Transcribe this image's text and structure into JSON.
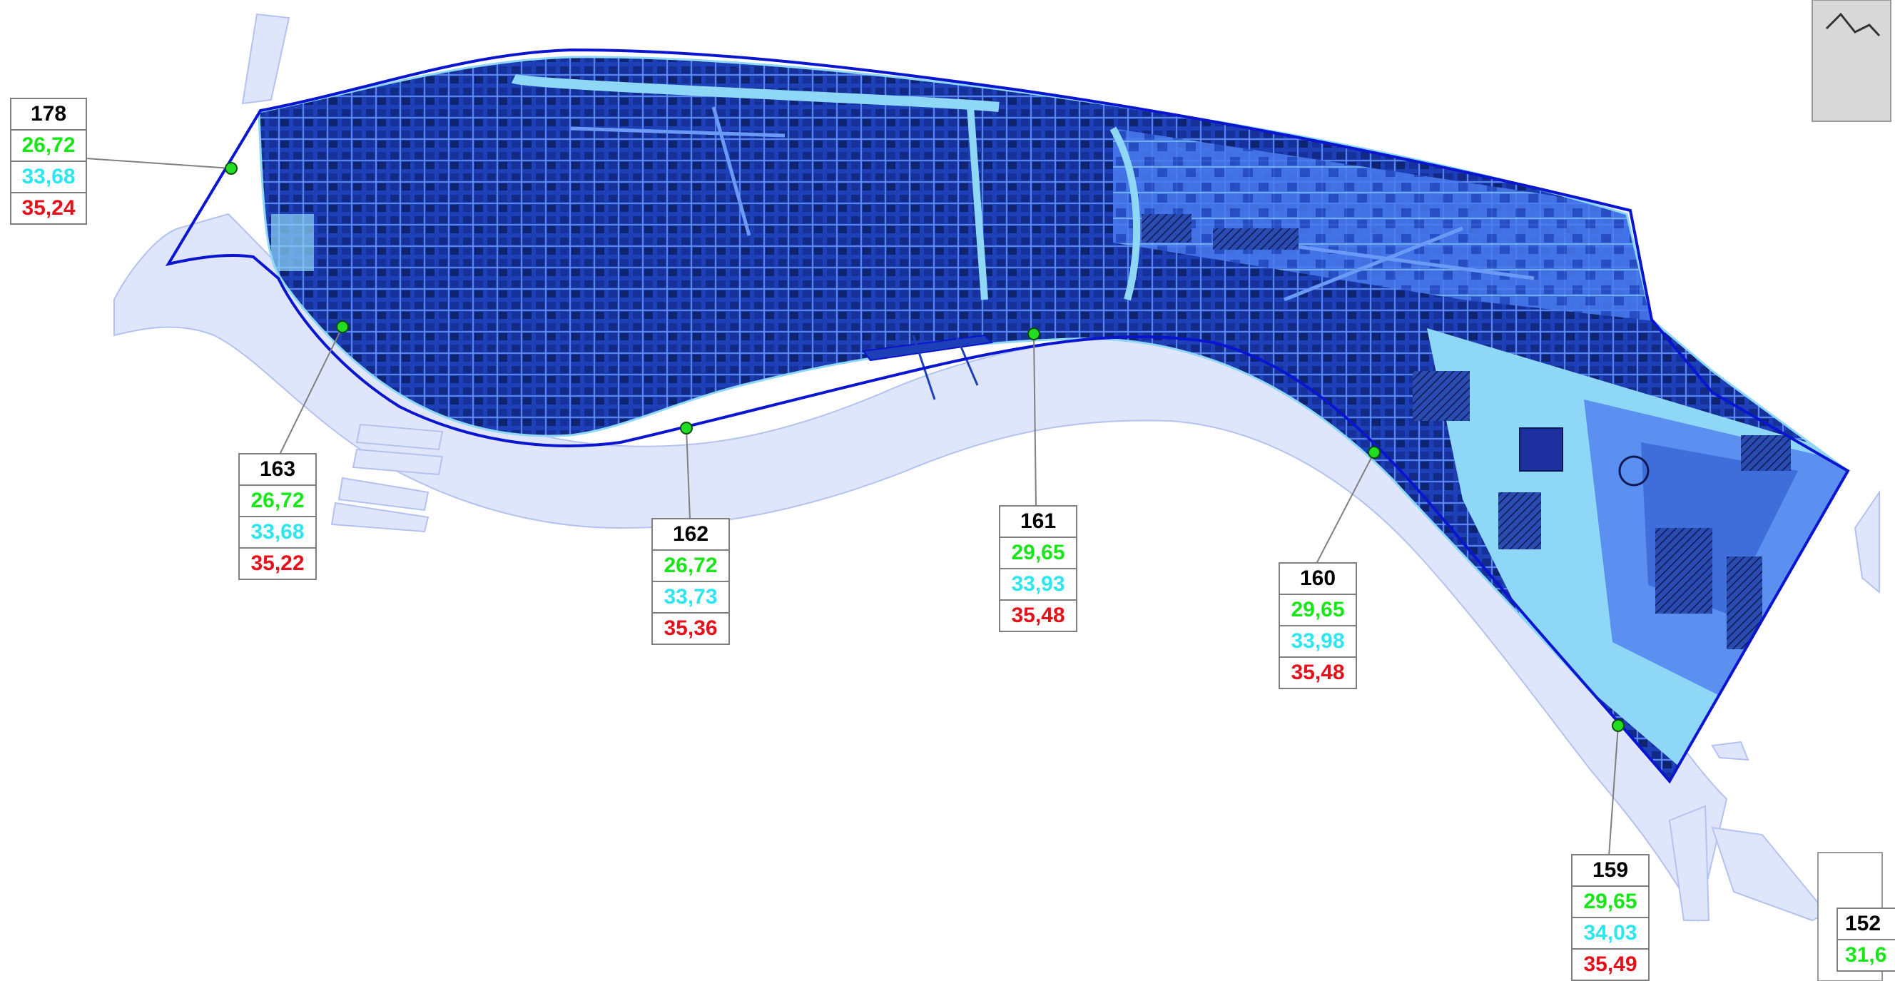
{
  "map": {
    "colors": {
      "background": "#ffffff",
      "river": "#dfe6fb",
      "river_edge": "#b4c2ef",
      "district_dark": "#1d3fb8",
      "district_mid": "#4a7cf0",
      "district_light": "#8fd7f7",
      "boundary": "#0a15d0",
      "gauge_point": "#22dd22",
      "leader_line": "#7f7f7f"
    },
    "legend_colors": {
      "level_1": "#19e619",
      "level_2": "#2de6f0",
      "level_3": "#e6101a"
    },
    "gauges": [
      {
        "id": "178",
        "v1": "26,72",
        "v2": "33,68",
        "v3": "35,24"
      },
      {
        "id": "163",
        "v1": "26,72",
        "v2": "33,68",
        "v3": "35,22"
      },
      {
        "id": "162",
        "v1": "26,72",
        "v2": "33,73",
        "v3": "35,36"
      },
      {
        "id": "161",
        "v1": "29,65",
        "v2": "33,93",
        "v3": "35,48"
      },
      {
        "id": "160",
        "v1": "29,65",
        "v2": "33,98",
        "v3": "35,48"
      },
      {
        "id": "159",
        "v1": "29,65",
        "v2": "34,03",
        "v3": "35,49"
      },
      {
        "id": "152",
        "v1": "31,6"
      }
    ]
  }
}
